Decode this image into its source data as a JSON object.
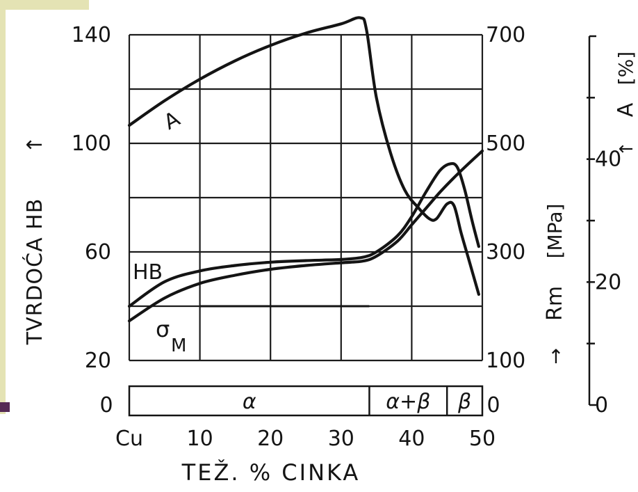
{
  "colors": {
    "paper": "#ffffff",
    "ink": "#141414",
    "grid": "#1c1c1c",
    "slide_background": "#e4e3b4",
    "slide_accent": "#552a55"
  },
  "chart_data": {
    "type": "line",
    "xlabel": "TEŽ. % CINKA",
    "x_ticks": [
      "Cu",
      "10",
      "20",
      "30",
      "40",
      "50"
    ],
    "xlim": [
      0,
      50
    ],
    "left_axis": {
      "label": "TVRDOĆA HB",
      "arrow": "↑",
      "ticks": [
        "140",
        "100",
        "60",
        "20"
      ],
      "ylim": [
        20,
        140
      ]
    },
    "rm_axis": {
      "label": "Rm",
      "unit": "[MPa]",
      "arrow": "↑",
      "ticks": [
        "700",
        "500",
        "300",
        "100"
      ],
      "ylim": [
        100,
        700
      ]
    },
    "a_axis": {
      "label": "A",
      "unit": "[%]",
      "arrow": "↑",
      "ticks": [
        "40",
        "20",
        "0"
      ],
      "ylim": [
        0,
        60
      ]
    },
    "grid": true,
    "series": [
      {
        "name": "A",
        "axis": "a_axis",
        "points": [
          [
            0,
            45.5
          ],
          [
            5,
            49.5
          ],
          [
            10,
            53
          ],
          [
            15,
            56
          ],
          [
            20,
            58.5
          ],
          [
            25,
            60.5
          ],
          [
            30,
            62
          ],
          [
            32.7,
            63
          ],
          [
            33.6,
            61
          ],
          [
            35,
            50
          ],
          [
            37,
            41
          ],
          [
            39,
            35
          ],
          [
            41,
            32
          ],
          [
            42.5,
            30.3
          ],
          [
            43.5,
            30.3
          ],
          [
            45,
            32.7
          ],
          [
            46,
            32.4
          ],
          [
            47,
            28
          ],
          [
            48,
            24
          ],
          [
            49.5,
            18
          ]
        ]
      },
      {
        "name": "HB",
        "axis": "left_axis",
        "points": [
          [
            0,
            40
          ],
          [
            5,
            49
          ],
          [
            10,
            53
          ],
          [
            15,
            55
          ],
          [
            20,
            56.2
          ],
          [
            25,
            56.8
          ],
          [
            30,
            57.2
          ],
          [
            33,
            58
          ],
          [
            35,
            60
          ],
          [
            38,
            66
          ],
          [
            40,
            73
          ],
          [
            42,
            82
          ],
          [
            44,
            90
          ],
          [
            45.5,
            92.5
          ],
          [
            46.5,
            91
          ],
          [
            47.5,
            83
          ],
          [
            48.5,
            72
          ],
          [
            49.5,
            62
          ]
        ]
      },
      {
        "name": "σM",
        "label_main": "σ",
        "label_sub": "M",
        "axis": "rm_axis",
        "points": [
          [
            0,
            173
          ],
          [
            5,
            215
          ],
          [
            10,
            242
          ],
          [
            15,
            257
          ],
          [
            20,
            268
          ],
          [
            25,
            275
          ],
          [
            30,
            280
          ],
          [
            33,
            283
          ],
          [
            35,
            292
          ],
          [
            38,
            320
          ],
          [
            40,
            350
          ],
          [
            42,
            380
          ],
          [
            44,
            410
          ],
          [
            46,
            437
          ],
          [
            48,
            462
          ],
          [
            50,
            486
          ]
        ]
      }
    ],
    "phase_bar": {
      "left_label": "0",
      "right_label": "0",
      "segments": [
        {
          "label": "α",
          "from": 0,
          "to": 34
        },
        {
          "label": "α+β",
          "from": 34,
          "to": 45
        },
        {
          "label": "β",
          "from": 45,
          "to": 50
        }
      ]
    },
    "extra_lines": [
      {
        "from_x": 10,
        "to_x": 34,
        "hb": 40
      }
    ]
  }
}
